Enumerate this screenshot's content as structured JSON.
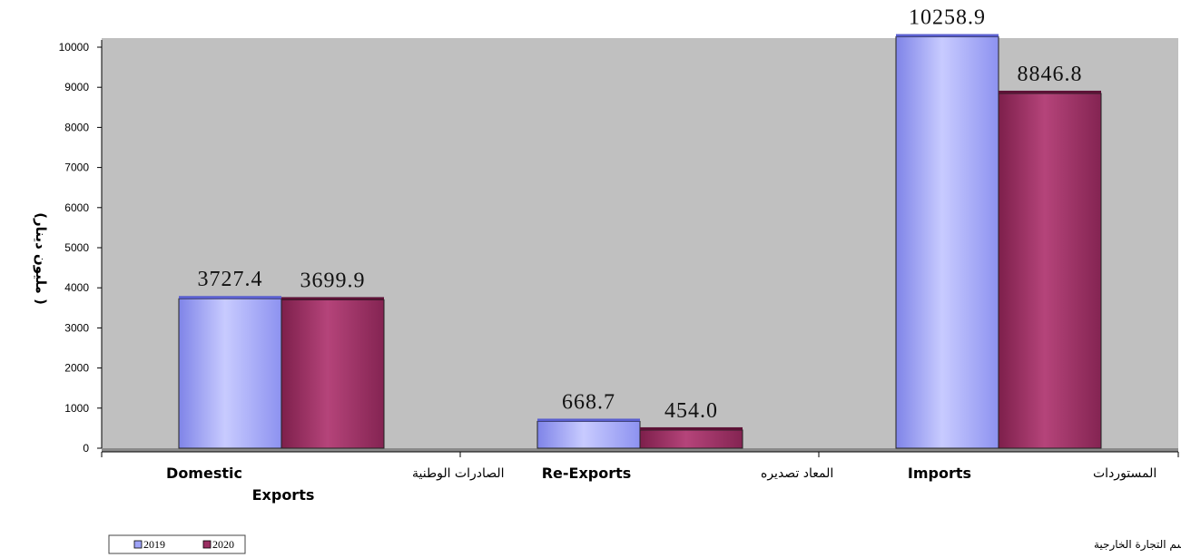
{
  "chart_data": {
    "type": "bar",
    "categories": [
      {
        "en_line1": "Domestic",
        "en_line2": "Exports",
        "ar": "الصادرات الوطنية"
      },
      {
        "en_line1": "Re-Exports",
        "en_line2": "",
        "ar": "المعاد تصديره"
      },
      {
        "en_line1": "Imports",
        "en_line2": "",
        "ar": "المستوردات"
      }
    ],
    "series": [
      {
        "name": "2019",
        "values": [
          3727.4,
          668.7,
          10258.9
        ],
        "labels": [
          "3727.4",
          "668.7",
          "10258.9"
        ],
        "color": "#9ea3f7"
      },
      {
        "name": "2020",
        "values": [
          3699.9,
          454.0,
          8846.8
        ],
        "labels": [
          "3699.9",
          "454.0",
          "8846.8"
        ],
        "color": "#9a2f62"
      }
    ],
    "ylabel": "( مليون دينار)",
    "ylim": [
      0,
      10000
    ],
    "yticks": [
      "0",
      "1000",
      "2000",
      "3000",
      "4000",
      "5000",
      "6000",
      "7000",
      "8000",
      "9000",
      "10000"
    ],
    "plot_background": "#c0c0c0",
    "grid": false,
    "legend_position": "bottom-left"
  },
  "source_note": "المصدر: دائرة الإحصاءات العامة/قسم التجارة الخارجية"
}
